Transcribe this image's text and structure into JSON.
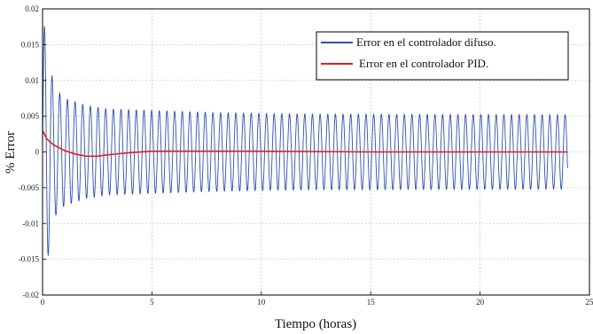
{
  "chart_data": {
    "type": "line",
    "title": "",
    "xlabel": "Tiempo (horas)",
    "ylabel": "% Error",
    "xlim": [
      0,
      25
    ],
    "ylim": [
      -0.02,
      0.02
    ],
    "xticks": [
      0,
      5,
      10,
      15,
      20,
      25
    ],
    "xtick_labels": [
      "0",
      "5",
      "10",
      "15",
      "20",
      "25"
    ],
    "yticks": [
      0.02,
      0.015,
      0.01,
      0.005,
      0,
      -0.005,
      -0.01,
      -0.015,
      -0.02
    ],
    "ytick_labels": [
      "0.02",
      "0.015",
      "0.01",
      "0.005",
      "0",
      "-0.005",
      "-0.01",
      "-0.015",
      "-0.02"
    ],
    "grid": true,
    "legend_position": "top-right",
    "series": [
      {
        "name": "Error en el controlador difuso.",
        "color": "#2e4fb3",
        "style": "oscillation",
        "period_hours": 0.35,
        "envelope": {
          "t": [
            0,
            0.12,
            0.5,
            1,
            2,
            3,
            5,
            8,
            12,
            24
          ],
          "amp": [
            0.0175,
            0.0175,
            0.0092,
            0.0075,
            0.0065,
            0.006,
            0.0058,
            0.0055,
            0.0053,
            0.0052
          ]
        },
        "end_t": 24
      },
      {
        "name": "Error en el controlador PID.",
        "color": "#e0201b",
        "style": "line",
        "x": [
          0,
          0.2,
          0.5,
          1,
          1.5,
          2,
          2.5,
          3,
          4,
          5,
          7,
          10,
          15,
          20,
          24
        ],
        "y": [
          0.003,
          0.0018,
          0.001,
          0.0002,
          -0.0003,
          -0.0006,
          -0.0006,
          -0.0004,
          -0.0001,
          0.0001,
          0.0001,
          0.0001,
          0,
          0,
          0
        ]
      }
    ]
  }
}
